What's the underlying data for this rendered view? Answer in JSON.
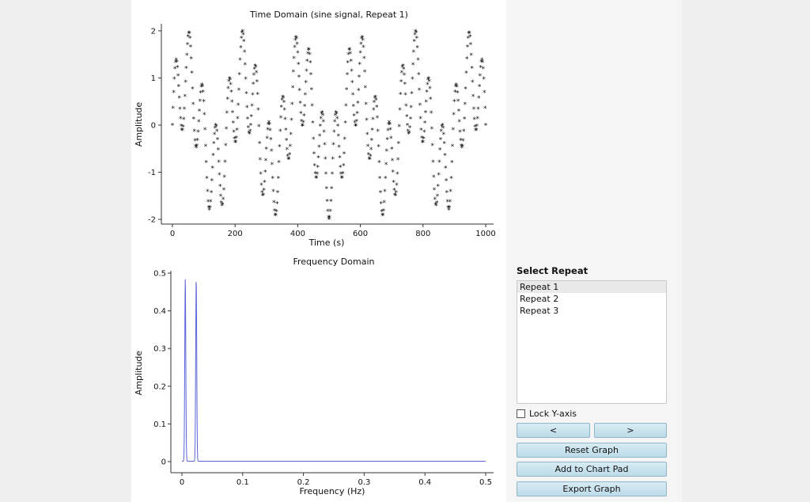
{
  "chart_data": [
    {
      "type": "scatter",
      "title": "Time Domain (sine signal, Repeat 1)",
      "xlabel": "Time (s)",
      "ylabel": "Amplitude",
      "xlim": [
        0,
        1000
      ],
      "ylim": [
        -2.1,
        2.15
      ],
      "x_ticks": [
        0,
        200,
        400,
        600,
        800,
        1000
      ],
      "y_ticks": [
        2,
        1,
        0,
        -1,
        -2
      ],
      "marker": "star",
      "color": "#111111",
      "signal": {
        "components": [
          {
            "amplitude": 1,
            "frequency_hz": 0.0055
          },
          {
            "amplitude": 1,
            "frequency_hz": 0.0235
          }
        ],
        "x_start": 0,
        "x_end": 1000,
        "x_step": 2
      }
    },
    {
      "type": "line",
      "title": "Frequency Domain",
      "xlabel": "Frequency (Hz)",
      "ylabel": "Amplitude",
      "xlim": [
        0,
        0.5
      ],
      "ylim": [
        0,
        0.5
      ],
      "x_ticks": [
        0,
        0.1,
        0.2,
        0.3,
        0.4,
        0.5
      ],
      "y_ticks": [
        0.5,
        0.4,
        0.3,
        0.2,
        0.1,
        0
      ],
      "color": "#5a64d8",
      "peaks": [
        {
          "frequency": 0.0055,
          "amplitude": 0.485
        },
        {
          "frequency": 0.0235,
          "amplitude": 0.485
        }
      ],
      "baseline": 0.001
    }
  ],
  "panel": {
    "title": "Select Repeat",
    "repeats": [
      "Repeat 1",
      "Repeat 2",
      "Repeat 3"
    ],
    "selected_index": 0,
    "lock_label": "Lock Y-axis",
    "prev_label": "<",
    "next_label": ">",
    "reset_label": "Reset Graph",
    "add_label": "Add to Chart Pad",
    "export_label": "Export Graph"
  }
}
